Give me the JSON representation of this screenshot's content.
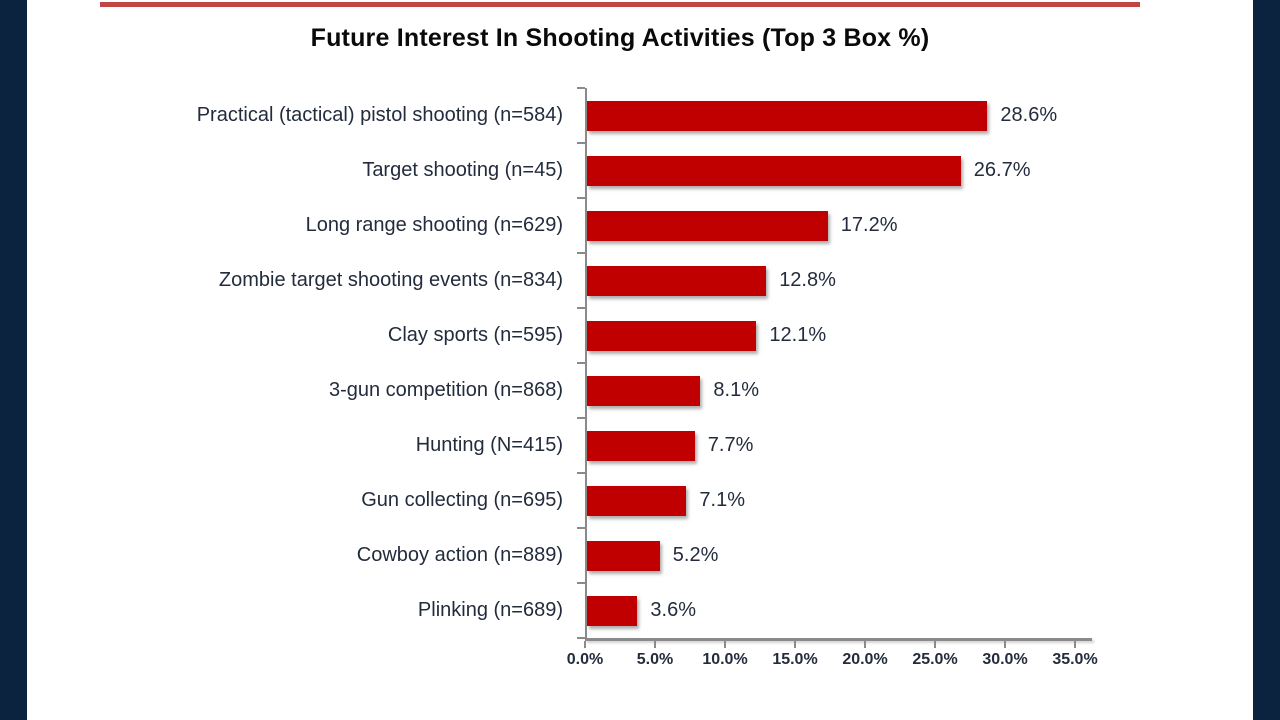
{
  "slide": {
    "title": "Future Interest In Shooting Activities (Top 3 Box %)"
  },
  "colors": {
    "bar": "#C00000",
    "edge_navy": "#0C2340",
    "top_rule_red": "#C24545",
    "axis_gray": "#8A8A8A",
    "label_text": "#232C3D"
  },
  "chart_data": {
    "type": "bar",
    "orientation": "horizontal",
    "title": "Future Interest In Shooting Activities (Top 3 Box %)",
    "categories": [
      "Practical (tactical) pistol shooting (n=584)",
      "Target shooting (n=45)",
      "Long range shooting (n=629)",
      "Zombie target shooting events (n=834)",
      "Clay sports (n=595)",
      "3-gun competition (n=868)",
      "Hunting (N=415)",
      "Gun collecting (n=695)",
      "Cowboy action (n=889)",
      "Plinking (n=689)"
    ],
    "values": [
      28.6,
      26.7,
      17.2,
      12.8,
      12.1,
      8.1,
      7.7,
      7.1,
      5.2,
      3.6
    ],
    "value_labels": [
      "28.6%",
      "26.7%",
      "17.2%",
      "12.8%",
      "12.1%",
      "8.1%",
      "7.7%",
      "7.1%",
      "5.2%",
      "3.6%"
    ],
    "x_ticks": [
      "0.0%",
      "5.0%",
      "10.0%",
      "15.0%",
      "20.0%",
      "25.0%",
      "30.0%",
      "35.0%"
    ],
    "xlabel": "",
    "ylabel": "",
    "xlim": [
      0,
      35
    ],
    "grid": false,
    "legend": "none",
    "data_labels": "outside-end",
    "bar_color": "#C00000"
  }
}
